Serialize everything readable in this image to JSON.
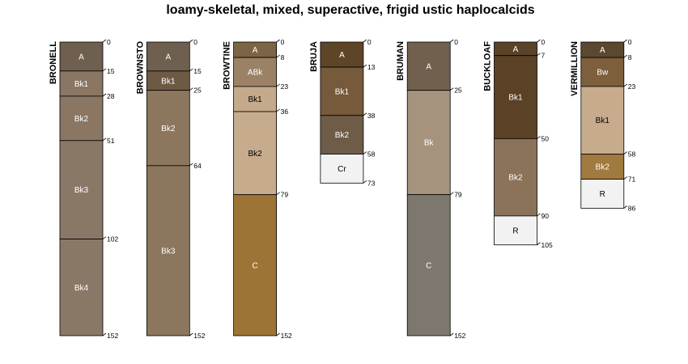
{
  "chart_data": {
    "type": "soil-profile-sketch",
    "title": "loamy-skeletal, mixed, superactive, frigid ustic haplocalcids",
    "depth_units": "cm",
    "max_depth": 152,
    "profiles": [
      {
        "name": "BRONELL",
        "horizons": [
          {
            "name": "A",
            "top": 0,
            "bottom": 15,
            "color": "#6E5F4F",
            "text_color": "#ffffff"
          },
          {
            "name": "Bk1",
            "top": 15,
            "bottom": 28,
            "color": "#8A7663",
            "text_color": "#ffffff"
          },
          {
            "name": "Bk2",
            "top": 28,
            "bottom": 51,
            "color": "#8A7663",
            "text_color": "#ffffff"
          },
          {
            "name": "Bk3",
            "top": 51,
            "bottom": 102,
            "color": "#8A7867",
            "text_color": "#ffffff"
          },
          {
            "name": "Bk4",
            "top": 102,
            "bottom": 152,
            "color": "#8A7867",
            "text_color": "#ffffff"
          }
        ]
      },
      {
        "name": "BROWNSTO",
        "horizons": [
          {
            "name": "A",
            "top": 0,
            "bottom": 15,
            "color": "#6E5F4F",
            "text_color": "#ffffff"
          },
          {
            "name": "Bk1",
            "top": 15,
            "bottom": 25,
            "color": "#6E5A44",
            "text_color": "#ffffff"
          },
          {
            "name": "Bk2",
            "top": 25,
            "bottom": 64,
            "color": "#8C765D",
            "text_color": "#ffffff"
          },
          {
            "name": "Bk3",
            "top": 64,
            "bottom": 152,
            "color": "#8C765D",
            "text_color": "#ffffff"
          }
        ]
      },
      {
        "name": "BROWTINE",
        "horizons": [
          {
            "name": "A",
            "top": 0,
            "bottom": 8,
            "color": "#7C6446",
            "text_color": "#ffffff"
          },
          {
            "name": "ABk",
            "top": 8,
            "bottom": 23,
            "color": "#9B8266",
            "text_color": "#ffffff"
          },
          {
            "name": "Bk1",
            "top": 23,
            "bottom": 36,
            "color": "#C4AA8A",
            "text_color": "#000000"
          },
          {
            "name": "Bk2",
            "top": 36,
            "bottom": 79,
            "color": "#C6AB8D",
            "text_color": "#000000"
          },
          {
            "name": "C",
            "top": 79,
            "bottom": 152,
            "color": "#9C7435",
            "text_color": "#ffffff"
          }
        ]
      },
      {
        "name": "BRUJA",
        "horizons": [
          {
            "name": "A",
            "top": 0,
            "bottom": 13,
            "color": "#5E4528",
            "text_color": "#ffffff"
          },
          {
            "name": "Bk1",
            "top": 13,
            "bottom": 38,
            "color": "#765A3C",
            "text_color": "#ffffff"
          },
          {
            "name": "Bk2",
            "top": 38,
            "bottom": 58,
            "color": "#6E5C48",
            "text_color": "#ffffff"
          },
          {
            "name": "Cr",
            "top": 58,
            "bottom": 73,
            "color": "#F2F2F2",
            "text_color": "#000000"
          }
        ]
      },
      {
        "name": "BRUMAN",
        "horizons": [
          {
            "name": "A",
            "top": 0,
            "bottom": 25,
            "color": "#72604E",
            "text_color": "#ffffff"
          },
          {
            "name": "Bk",
            "top": 25,
            "bottom": 79,
            "color": "#A5937E",
            "text_color": "#ffffff"
          },
          {
            "name": "C",
            "top": 79,
            "bottom": 152,
            "color": "#7E776D",
            "text_color": "#ffffff"
          }
        ]
      },
      {
        "name": "BUCKLOAF",
        "horizons": [
          {
            "name": "A",
            "top": 0,
            "bottom": 7,
            "color": "#5B4329",
            "text_color": "#ffffff"
          },
          {
            "name": "Bk1",
            "top": 7,
            "bottom": 50,
            "color": "#5B4125",
            "text_color": "#ffffff"
          },
          {
            "name": "Bk2",
            "top": 50,
            "bottom": 90,
            "color": "#8A7358",
            "text_color": "#ffffff"
          },
          {
            "name": "R",
            "top": 90,
            "bottom": 105,
            "color": "#F2F2F2",
            "text_color": "#000000"
          }
        ]
      },
      {
        "name": "VERMILLION",
        "horizons": [
          {
            "name": "A",
            "top": 0,
            "bottom": 8,
            "color": "#5C4830",
            "text_color": "#ffffff"
          },
          {
            "name": "Bw",
            "top": 8,
            "bottom": 23,
            "color": "#7E5F3B",
            "text_color": "#ffffff"
          },
          {
            "name": "Bk1",
            "top": 23,
            "bottom": 58,
            "color": "#C6AB8D",
            "text_color": "#000000"
          },
          {
            "name": "Bk2",
            "top": 58,
            "bottom": 71,
            "color": "#A07A3E",
            "text_color": "#ffffff"
          },
          {
            "name": "R",
            "top": 71,
            "bottom": 86,
            "color": "#F2F2F2",
            "text_color": "#000000"
          }
        ]
      }
    ]
  }
}
